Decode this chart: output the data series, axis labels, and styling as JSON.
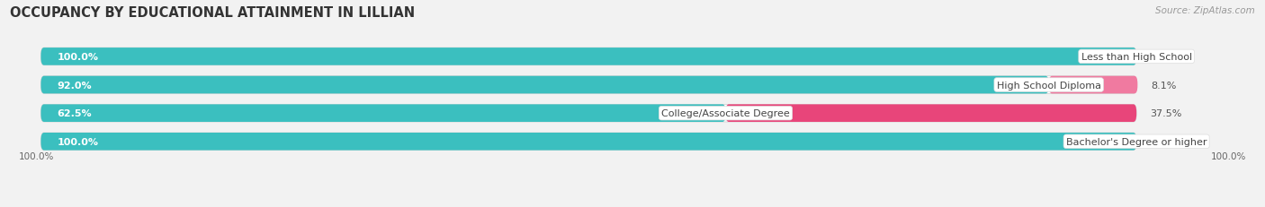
{
  "title": "OCCUPANCY BY EDUCATIONAL ATTAINMENT IN LILLIAN",
  "source": "Source: ZipAtlas.com",
  "categories": [
    "Less than High School",
    "High School Diploma",
    "College/Associate Degree",
    "Bachelor's Degree or higher"
  ],
  "owner_values": [
    100.0,
    92.0,
    62.5,
    100.0
  ],
  "renter_values": [
    0.0,
    8.1,
    37.5,
    0.0
  ],
  "owner_color": "#3bbfbf",
  "renter_color": "#f07aa0",
  "renter_color_college": "#e8457a",
  "bg_color": "#f2f2f2",
  "bar_bg_color": "#e8e8e8",
  "bar_height": 0.62,
  "title_fontsize": 10.5,
  "label_fontsize": 8,
  "tick_fontsize": 7.5,
  "source_fontsize": 7.5,
  "owner_label_color": "white",
  "renter_label_color": "#555555",
  "bottom_labels": [
    "100.0%",
    "100.0%"
  ]
}
